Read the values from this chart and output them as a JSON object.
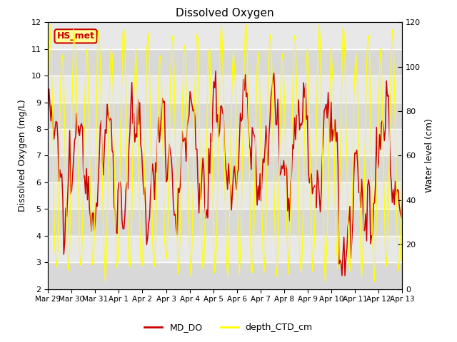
{
  "title": "Dissolved Oxygen",
  "ylabel_left": "Dissolved Oxygen (mg/L)",
  "ylabel_right": "Water level (cm)",
  "ylim_left": [
    2.0,
    12.0
  ],
  "ylim_right": [
    0,
    120
  ],
  "yticks_left": [
    2.0,
    3.0,
    4.0,
    5.0,
    6.0,
    7.0,
    8.0,
    9.0,
    10.0,
    11.0,
    12.0
  ],
  "yticks_right": [
    0,
    20,
    40,
    60,
    80,
    100,
    120
  ],
  "xtick_labels": [
    "Mar 29",
    "Mar 30",
    "Mar 31",
    "Apr 1",
    "Apr 2",
    "Apr 3",
    "Apr 4",
    "Apr 5",
    "Apr 6",
    "Apr 7",
    "Apr 8",
    "Apr 9",
    "Apr 10",
    "Apr 11",
    "Apr 12",
    "Apr 13"
  ],
  "color_DO": "#cc0000",
  "color_depth": "#ffff00",
  "legend_label_DO": "MD_DO",
  "legend_label_depth": "depth_CTD_cm",
  "annotation_text": "HS_met",
  "annotation_color": "#cc0000",
  "annotation_bg": "#ffff99",
  "bg_light": "#dcdcdc",
  "bg_dark": "#c8c8c8",
  "grid_color": "#ffffff",
  "n_points": 360,
  "band_colors": [
    "#d8d8d8",
    "#e8e8e8"
  ]
}
